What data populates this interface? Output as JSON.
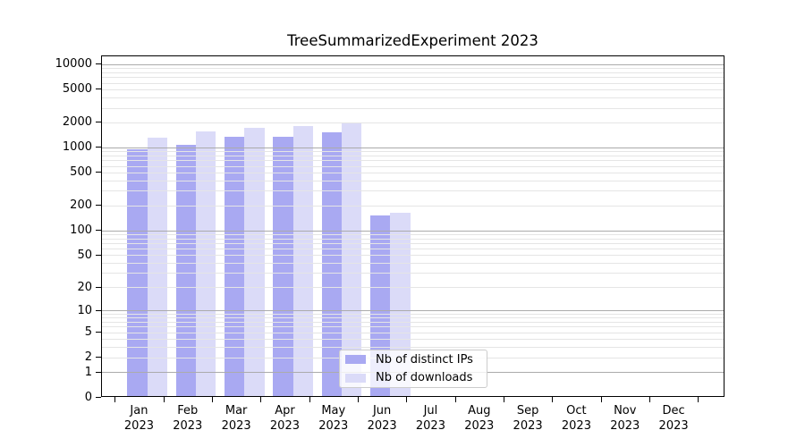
{
  "title": "TreeSummarizedExperiment 2023",
  "colors": {
    "bar_ips": "#a9a9f2",
    "bar_downloads": "#dbdbf8",
    "grid_major": "#ababab",
    "grid_minor": "#e5e5e5",
    "axis": "#000000",
    "background": "#ffffff"
  },
  "chart_data": {
    "type": "bar",
    "title": "TreeSummarizedExperiment 2023",
    "categories": [
      "Jan 2023",
      "Feb 2023",
      "Mar 2023",
      "Apr 2023",
      "May 2023",
      "Jun 2023",
      "Jul 2023",
      "Aug 2023",
      "Sep 2023",
      "Oct 2023",
      "Nov 2023",
      "Dec 2023"
    ],
    "series": [
      {
        "name": "Nb of distinct IPs",
        "color": "#a9a9f2",
        "values": [
          940,
          1080,
          1350,
          1350,
          1510,
          150,
          0,
          0,
          0,
          0,
          0,
          0
        ]
      },
      {
        "name": "Nb of downloads",
        "color": "#dbdbf8",
        "values": [
          1310,
          1570,
          1710,
          1820,
          2000,
          165,
          0,
          0,
          0,
          0,
          0,
          0
        ]
      }
    ],
    "yscale": "log10(1+v)",
    "y_tick_values": [
      0,
      1,
      2,
      5,
      10,
      20,
      50,
      100,
      200,
      500,
      1000,
      2000,
      5000,
      10000
    ],
    "y_tick_labels": [
      "0",
      "1",
      "2",
      "5",
      "10",
      "20",
      "50",
      "100",
      "200",
      "500",
      "1000",
      "2000",
      "5000",
      "10000"
    ],
    "ylim": [
      0,
      12800
    ],
    "grid": true,
    "legend_position": "lower center inside plot"
  }
}
